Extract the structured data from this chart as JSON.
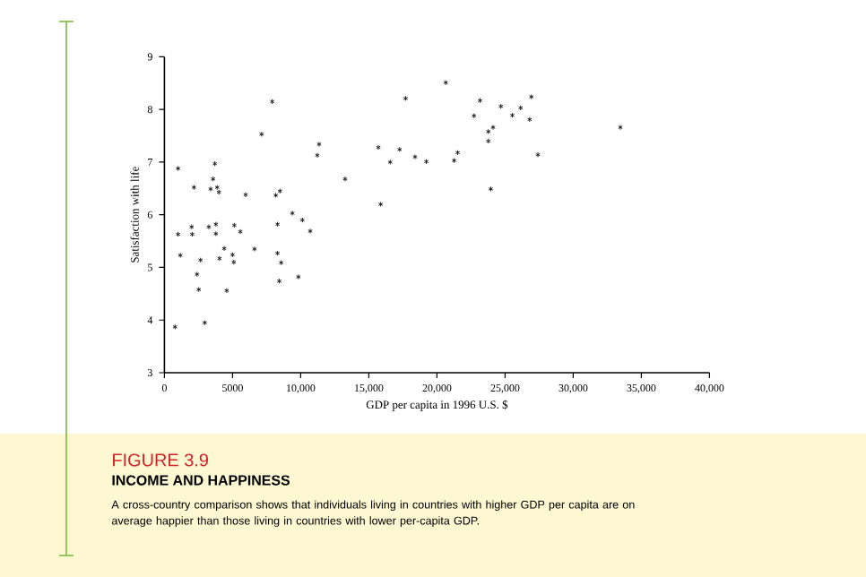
{
  "chart_data": {
    "type": "scatter",
    "title": "FIGURE 3.9",
    "subtitle": "INCOME AND HAPPINESS",
    "xlabel": "GDP per capita in 1996 U.S. $",
    "ylabel": "Satisfaction with life",
    "annotations": [
      "A cross-country comparison shows that individuals living in countries with higher GDP per capita are on average happier than those living in countries with lower per-capita GDP."
    ],
    "xlim": [
      0,
      40000
    ],
    "ylim": [
      3,
      9
    ],
    "xticks": [
      0,
      5000,
      {
        "value": 10000,
        "label": "10,000"
      },
      {
        "value": 15000,
        "label": "15,000"
      },
      {
        "value": 20000,
        "label": "20,000"
      },
      {
        "value": 25000,
        "label": "25,000"
      },
      {
        "value": 30000,
        "label": "30,000"
      },
      {
        "value": 35000,
        "label": "35,000"
      },
      {
        "value": 40000,
        "label": "40,000"
      }
    ],
    "yticks": [
      3,
      4,
      5,
      6,
      7,
      8,
      9
    ],
    "grid": false,
    "marker": "cross",
    "series": [
      {
        "color": "#231f20",
        "x": [
          780,
          1000,
          1000,
          1170,
          2000,
          2040,
          2170,
          2390,
          2520,
          2650,
          2960,
          3260,
          3390,
          3570,
          3700,
          3780,
          3780,
          3870,
          4000,
          4040,
          4390,
          4570,
          5000,
          5090,
          5130,
          5570,
          5960,
          6610,
          7130,
          7910,
          8170,
          8300,
          8300,
          8480,
          8430,
          8570,
          9390,
          9830,
          10130,
          10700,
          11220,
          11350,
          13260,
          15700,
          15870,
          16570,
          17260,
          17700,
          18390,
          19220,
          20650,
          21260,
          21520,
          22720,
          23160,
          23770,
          24120,
          23770,
          23950,
          24690,
          25530,
          26140,
          26930,
          26800,
          27410,
          33460
        ],
        "values": [
          3.87,
          6.88,
          5.63,
          5.23,
          5.77,
          5.63,
          6.52,
          4.87,
          4.58,
          5.14,
          3.95,
          5.77,
          6.49,
          6.68,
          6.97,
          5.82,
          5.64,
          6.52,
          6.43,
          5.17,
          5.36,
          4.56,
          5.24,
          5.1,
          5.8,
          5.68,
          6.38,
          5.35,
          7.53,
          8.15,
          6.37,
          5.82,
          5.27,
          6.45,
          4.74,
          5.09,
          6.03,
          4.82,
          5.9,
          5.69,
          7.13,
          7.34,
          6.68,
          7.28,
          6.2,
          7.0,
          7.24,
          8.21,
          7.1,
          7.01,
          8.51,
          7.03,
          7.18,
          7.88,
          8.17,
          7.58,
          7.66,
          7.4,
          6.49,
          8.06,
          7.89,
          8.03,
          8.24,
          7.81,
          7.14,
          7.66
        ]
      }
    ]
  }
}
